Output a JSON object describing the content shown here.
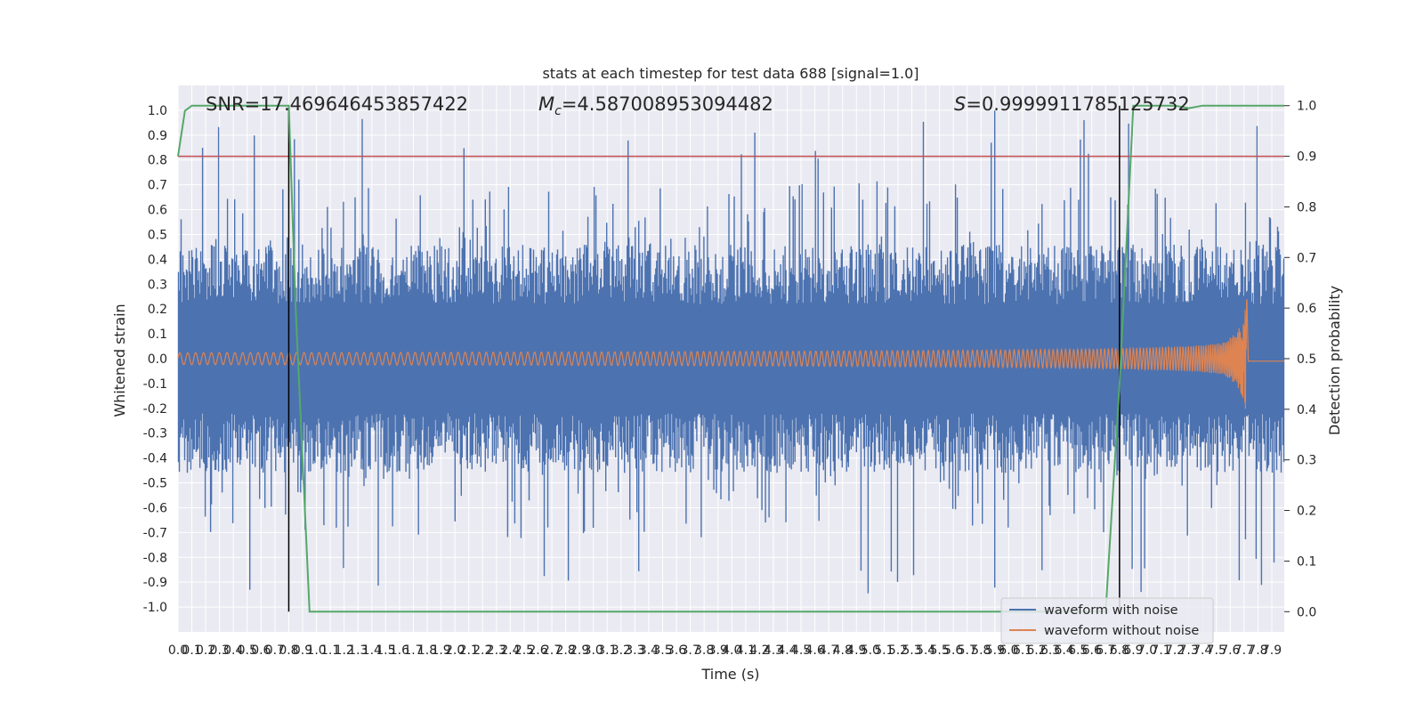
{
  "chart_data": {
    "type": "line",
    "title": "stats at each timestep for test data 688 [signal=1.0]",
    "xlabel": "Time (s)",
    "ylabel_left": "Whitened strain",
    "ylabel_right": "Detection probability",
    "xlim": [
      0.0,
      7.99
    ],
    "ylim_left": [
      -1.1,
      1.1
    ],
    "ylim_right": [
      -0.04,
      1.04
    ],
    "xticks": [
      "0.0",
      "0.1",
      "0.2",
      "0.3",
      "0.4",
      "0.5",
      "0.6",
      "0.7",
      "0.8",
      "0.9",
      "1.0",
      "1.1",
      "1.2",
      "1.3",
      "1.4",
      "1.5",
      "1.6",
      "1.7",
      "1.8",
      "1.9",
      "2.0",
      "2.1",
      "2.2",
      "2.3",
      "2.4",
      "2.5",
      "2.6",
      "2.7",
      "2.8",
      "2.9",
      "3.0",
      "3.1",
      "3.2",
      "3.3",
      "3.4",
      "3.5",
      "3.6",
      "3.7",
      "3.8",
      "3.9",
      "4.0",
      "4.1",
      "4.2",
      "4.3",
      "4.4",
      "4.5",
      "4.6",
      "4.7",
      "4.8",
      "4.9",
      "5.0",
      "5.1",
      "5.2",
      "5.3",
      "5.4",
      "5.5",
      "5.6",
      "5.7",
      "5.8",
      "5.9",
      "6.0",
      "6.1",
      "6.2",
      "6.3",
      "6.4",
      "6.5",
      "6.6",
      "6.7",
      "6.8",
      "6.9",
      "7.0",
      "7.1",
      "7.2",
      "7.3",
      "7.4",
      "7.5",
      "7.6",
      "7.7",
      "7.8",
      "7.9"
    ],
    "yticks_left": [
      "1.0",
      "0.9",
      "0.8",
      "0.7",
      "0.6",
      "0.5",
      "0.4",
      "0.3",
      "0.2",
      "0.1",
      "0.0",
      "-0.1",
      "-0.2",
      "-0.3",
      "-0.4",
      "-0.5",
      "-0.6",
      "-0.7",
      "-0.8",
      "-0.9",
      "-1.0"
    ],
    "yticks_right": [
      "1.0",
      "0.9",
      "0.8",
      "0.7",
      "0.6",
      "0.5",
      "0.4",
      "0.3",
      "0.2",
      "0.1",
      "0.0"
    ],
    "annotations": {
      "snr": "SNR=17.469646453857422",
      "mc_symbol": "M",
      "mc_sub": "c",
      "mc_value": "=4.587008953094482",
      "s_symbol": "S",
      "s_value": "=0.9999911785125732"
    },
    "threshold_right": 0.9,
    "vlines_x": [
      0.8,
      6.8
    ],
    "series": [
      {
        "name": "waveform with noise",
        "color": "#4c72b0",
        "axis": "left",
        "description": "whitened noisy strain, amplitude envelope ~0.4 with spikes up to ~1.0"
      },
      {
        "name": "waveform without noise",
        "color": "#dd8452",
        "axis": "left",
        "description": "chirp signal, amplitude grows from ~0.03 to ~0.35 and ends near 7.7 s"
      },
      {
        "name": "detection probability",
        "color": "#55a868",
        "axis": "right",
        "x": [
          0.0,
          0.05,
          0.1,
          0.15,
          0.2,
          0.3,
          0.4,
          0.5,
          0.6,
          0.7,
          0.8,
          0.85,
          0.95,
          1.0,
          2.0,
          3.0,
          4.0,
          5.0,
          6.0,
          6.7,
          6.8,
          6.9,
          7.0,
          7.1,
          7.2,
          7.3,
          7.4,
          7.5,
          7.6,
          7.7,
          7.8,
          7.9,
          7.99
        ],
        "values": [
          0.9,
          0.99,
          1.0,
          1.0,
          1.0,
          1.0,
          1.0,
          1.0,
          1.0,
          1.0,
          1.0,
          0.6,
          0.0,
          0.0,
          0.0,
          0.0,
          0.0,
          0.0,
          0.0,
          0.0,
          0.45,
          1.0,
          1.0,
          1.0,
          1.0,
          0.995,
          1.0,
          1.0,
          1.0,
          1.0,
          1.0,
          1.0,
          1.0
        ]
      }
    ],
    "legend": {
      "position": "lower-right",
      "entries": [
        {
          "label": "waveform with noise",
          "color": "#4c72b0"
        },
        {
          "label": "waveform without noise",
          "color": "#dd8452"
        }
      ]
    },
    "colors": {
      "plot_bg": "#eaeaf2",
      "grid": "#ffffff",
      "threshold": "#c44e52",
      "vline": "#000000"
    }
  }
}
